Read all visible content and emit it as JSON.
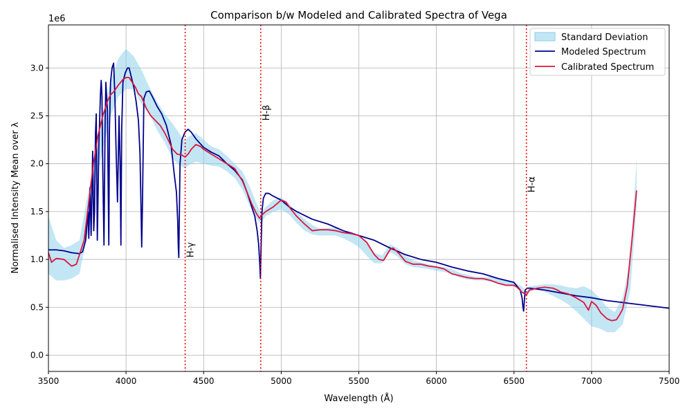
{
  "chart_data": {
    "type": "line",
    "title": "Comparison b/w Modeled and Calibrated Spectra of Vega",
    "xlabel": "Wavelength (Å)",
    "ylabel": "Normalised Intensity Mean over λ",
    "y_offset_label": "1e6",
    "xlim": [
      3500,
      7500
    ],
    "ylim": [
      -0.17,
      3.45
    ],
    "grid": true,
    "legend_position": "top-right",
    "x_ticks": [
      3500,
      4000,
      4500,
      5000,
      5500,
      6000,
      6500,
      7000,
      7500
    ],
    "x_tick_labels": [
      "3500",
      "4000",
      "4500",
      "5000",
      "5500",
      "6000",
      "6500",
      "7000",
      "7500"
    ],
    "y_ticks": [
      0.0,
      0.5,
      1.0,
      1.5,
      2.0,
      2.5,
      3.0
    ],
    "y_tick_labels": [
      "0.0",
      "0.5",
      "1.0",
      "1.5",
      "2.0",
      "2.5",
      "3.0"
    ],
    "reference_lines": [
      {
        "x": 4381,
        "label": "H-γ",
        "label_y": 1.02
      },
      {
        "x": 4868,
        "label": "H-β",
        "label_y": 2.45
      },
      {
        "x": 6580,
        "label": "H-α",
        "label_y": 1.7
      }
    ],
    "series": [
      {
        "name": "Standard Deviation",
        "kind": "band",
        "color": "#87ceeb",
        "x": [
          3500,
          3550,
          3600,
          3650,
          3700,
          3750,
          3800,
          3850,
          3900,
          3950,
          4000,
          4050,
          4100,
          4150,
          4200,
          4250,
          4300,
          4350,
          4380,
          4400,
          4450,
          4500,
          4550,
          4600,
          4650,
          4700,
          4750,
          4800,
          4850,
          4870,
          4900,
          4950,
          5000,
          5050,
          5100,
          5150,
          5200,
          5250,
          5300,
          5350,
          5400,
          5450,
          5500,
          5550,
          5600,
          5650,
          5700,
          5750,
          5800,
          5850,
          5900,
          5950,
          6000,
          6050,
          6100,
          6150,
          6200,
          6250,
          6300,
          6350,
          6400,
          6450,
          6500,
          6550,
          6580,
          6600,
          6650,
          6700,
          6750,
          6800,
          6850,
          6900,
          6950,
          7000,
          7050,
          7100,
          7150,
          7200,
          7250,
          7290
        ],
        "upper": [
          1.45,
          1.2,
          1.12,
          1.15,
          1.2,
          1.65,
          2.05,
          2.5,
          2.85,
          3.1,
          3.2,
          3.12,
          2.98,
          2.8,
          2.65,
          2.52,
          2.42,
          2.3,
          2.23,
          2.28,
          2.32,
          2.25,
          2.18,
          2.15,
          2.08,
          2.0,
          1.92,
          1.75,
          1.55,
          1.48,
          1.55,
          1.62,
          1.65,
          1.58,
          1.5,
          1.42,
          1.36,
          1.32,
          1.33,
          1.33,
          1.3,
          1.29,
          1.25,
          1.18,
          1.07,
          1.04,
          1.16,
          1.12,
          1.04,
          0.99,
          0.97,
          0.95,
          0.93,
          0.92,
          0.9,
          0.86,
          0.84,
          0.82,
          0.81,
          0.82,
          0.8,
          0.78,
          0.76,
          0.72,
          0.66,
          0.72,
          0.73,
          0.74,
          0.74,
          0.73,
          0.71,
          0.7,
          0.72,
          0.68,
          0.6,
          0.5,
          0.45,
          0.6,
          1.0,
          2.05
        ],
        "lower": [
          0.85,
          0.78,
          0.78,
          0.8,
          0.85,
          1.25,
          1.75,
          2.15,
          2.5,
          2.7,
          2.78,
          2.78,
          2.62,
          2.52,
          2.35,
          2.22,
          2.05,
          1.98,
          1.95,
          1.98,
          2.02,
          2.0,
          1.98,
          1.97,
          1.92,
          1.85,
          1.73,
          1.55,
          1.4,
          1.38,
          1.45,
          1.5,
          1.52,
          1.47,
          1.38,
          1.3,
          1.26,
          1.25,
          1.25,
          1.25,
          1.22,
          1.18,
          1.13,
          1.04,
          0.96,
          0.96,
          1.08,
          1.03,
          0.95,
          0.92,
          0.91,
          0.9,
          0.88,
          0.87,
          0.85,
          0.81,
          0.79,
          0.78,
          0.78,
          0.77,
          0.75,
          0.73,
          0.72,
          0.66,
          0.6,
          0.67,
          0.68,
          0.66,
          0.62,
          0.58,
          0.53,
          0.46,
          0.38,
          0.3,
          0.28,
          0.24,
          0.24,
          0.32,
          0.68,
          1.55
        ]
      },
      {
        "name": "Modeled Spectrum",
        "kind": "line",
        "color": "#00008b",
        "x": [
          3500,
          3550,
          3600,
          3650,
          3700,
          3720,
          3740,
          3755,
          3760,
          3768,
          3775,
          3785,
          3792,
          3797,
          3803,
          3808,
          3815,
          3825,
          3835,
          3840,
          3845,
          3850,
          3858,
          3865,
          3870,
          3880,
          3886,
          3889,
          3893,
          3900,
          3910,
          3920,
          3928,
          3935,
          3945,
          3955,
          3962,
          3967,
          3972,
          3980,
          3995,
          4010,
          4020,
          4035,
          4050,
          4065,
          4080,
          4090,
          4097,
          4101,
          4106,
          4115,
          4130,
          4150,
          4170,
          4200,
          4230,
          4260,
          4290,
          4310,
          4325,
          4333,
          4337,
          4340,
          4343,
          4348,
          4360,
          4380,
          4400,
          4420,
          4450,
          4500,
          4550,
          4600,
          4650,
          4700,
          4750,
          4780,
          4810,
          4830,
          4845,
          4855,
          4862,
          4866,
          4870,
          4876,
          4885,
          4900,
          4920,
          4950,
          5000,
          5050,
          5100,
          5150,
          5200,
          5300,
          5400,
          5500,
          5600,
          5700,
          5800,
          5900,
          6000,
          6100,
          6200,
          6300,
          6400,
          6450,
          6500,
          6520,
          6540,
          6552,
          6558,
          6562,
          6566,
          6572,
          6585,
          6600,
          6650,
          6700,
          6800,
          6900,
          7000,
          7100,
          7200,
          7300,
          7400,
          7500
        ],
        "y": [
          1.1,
          1.1,
          1.09,
          1.07,
          1.06,
          1.08,
          1.2,
          1.5,
          1.22,
          1.75,
          1.25,
          2.13,
          1.3,
          1.5,
          2.3,
          2.52,
          1.2,
          2.2,
          2.72,
          2.87,
          2.7,
          1.95,
          1.15,
          2.4,
          2.85,
          2.55,
          1.6,
          1.15,
          2.35,
          2.85,
          3.0,
          3.05,
          2.72,
          2.2,
          1.6,
          2.5,
          2.0,
          1.15,
          2.35,
          2.85,
          2.95,
          3.0,
          3.0,
          2.9,
          2.8,
          2.65,
          2.45,
          2.1,
          1.5,
          1.13,
          1.6,
          2.68,
          2.75,
          2.76,
          2.7,
          2.6,
          2.52,
          2.4,
          2.2,
          1.9,
          1.7,
          1.4,
          1.12,
          1.02,
          1.4,
          2.0,
          2.25,
          2.33,
          2.36,
          2.33,
          2.26,
          2.17,
          2.12,
          2.08,
          2.0,
          1.93,
          1.83,
          1.7,
          1.55,
          1.45,
          1.3,
          1.15,
          0.95,
          0.8,
          1.1,
          1.5,
          1.64,
          1.69,
          1.69,
          1.66,
          1.62,
          1.55,
          1.5,
          1.46,
          1.42,
          1.37,
          1.3,
          1.25,
          1.2,
          1.12,
          1.05,
          1.0,
          0.97,
          0.92,
          0.88,
          0.85,
          0.8,
          0.78,
          0.76,
          0.72,
          0.68,
          0.6,
          0.5,
          0.46,
          0.55,
          0.68,
          0.7,
          0.7,
          0.69,
          0.68,
          0.65,
          0.62,
          0.6,
          0.57,
          0.55,
          0.53,
          0.51,
          0.49
        ]
      },
      {
        "name": "Calibrated Spectrum",
        "kind": "line",
        "color": "#dc143c",
        "x": [
          3500,
          3520,
          3550,
          3600,
          3650,
          3680,
          3700,
          3730,
          3760,
          3790,
          3820,
          3850,
          3880,
          3900,
          3920,
          3950,
          3980,
          4000,
          4020,
          4040,
          4060,
          4080,
          4100,
          4130,
          4160,
          4190,
          4220,
          4250,
          4280,
          4300,
          4330,
          4360,
          4380,
          4400,
          4420,
          4450,
          4480,
          4500,
          4550,
          4600,
          4650,
          4700,
          4750,
          4780,
          4810,
          4840,
          4860,
          4880,
          4900,
          4950,
          5000,
          5030,
          5060,
          5100,
          5150,
          5200,
          5250,
          5300,
          5350,
          5400,
          5450,
          5500,
          5550,
          5600,
          5630,
          5660,
          5700,
          5720,
          5760,
          5800,
          5850,
          5900,
          5950,
          6000,
          6050,
          6100,
          6150,
          6200,
          6250,
          6300,
          6350,
          6400,
          6450,
          6500,
          6520,
          6550,
          6580,
          6600,
          6650,
          6700,
          6750,
          6780,
          6800,
          6850,
          6900,
          6950,
          6980,
          7000,
          7030,
          7060,
          7100,
          7130,
          7160,
          7180,
          7200,
          7230,
          7260,
          7290
        ],
        "y": [
          1.07,
          0.97,
          1.01,
          1.0,
          0.93,
          0.95,
          1.05,
          1.2,
          1.6,
          2.0,
          2.3,
          2.5,
          2.65,
          2.72,
          2.75,
          2.82,
          2.88,
          2.9,
          2.9,
          2.85,
          2.8,
          2.73,
          2.7,
          2.58,
          2.5,
          2.45,
          2.4,
          2.32,
          2.22,
          2.15,
          2.1,
          2.09,
          2.07,
          2.1,
          2.15,
          2.2,
          2.18,
          2.15,
          2.1,
          2.05,
          2.0,
          1.95,
          1.82,
          1.7,
          1.58,
          1.48,
          1.43,
          1.47,
          1.5,
          1.55,
          1.62,
          1.6,
          1.53,
          1.45,
          1.37,
          1.3,
          1.31,
          1.31,
          1.3,
          1.28,
          1.27,
          1.25,
          1.18,
          1.05,
          1.0,
          0.99,
          1.1,
          1.12,
          1.06,
          0.98,
          0.95,
          0.95,
          0.93,
          0.92,
          0.9,
          0.85,
          0.83,
          0.81,
          0.8,
          0.8,
          0.78,
          0.75,
          0.73,
          0.73,
          0.71,
          0.66,
          0.63,
          0.68,
          0.7,
          0.71,
          0.7,
          0.68,
          0.66,
          0.64,
          0.6,
          0.55,
          0.47,
          0.56,
          0.52,
          0.44,
          0.38,
          0.36,
          0.37,
          0.42,
          0.48,
          0.72,
          1.2,
          1.72
        ]
      }
    ]
  }
}
